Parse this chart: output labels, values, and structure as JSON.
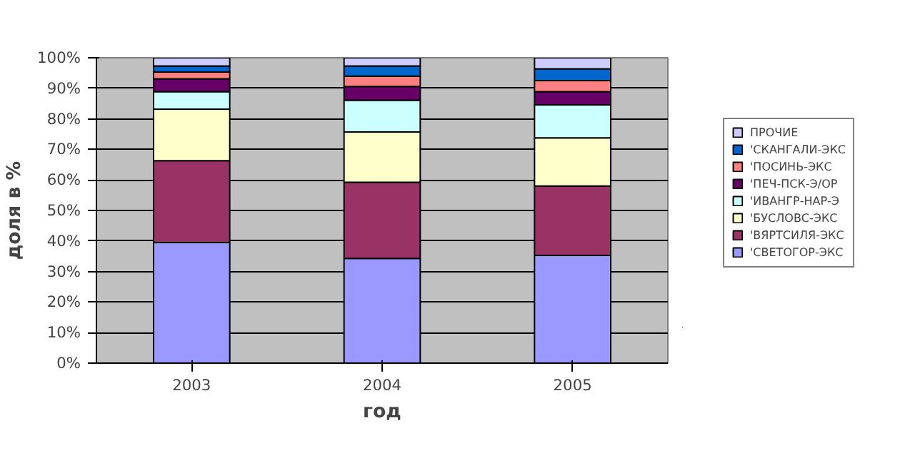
{
  "chart_data": {
    "type": "bar",
    "stacked": true,
    "xlabel": "год",
    "ylabel": "доля в %",
    "categories": [
      "2003",
      "2004",
      "2005"
    ],
    "series": [
      {
        "name": "'СВЕТОГОР-ЭКС",
        "color": "#9999ff",
        "values": [
          39.5,
          34.3,
          35.3
        ]
      },
      {
        "name": "'ВЯРТСИЛЯ-ЭКС",
        "color": "#993366",
        "values": [
          26.8,
          24.9,
          22.7
        ]
      },
      {
        "name": "'БУСЛОВС-ЭКС",
        "color": "#ffffcc",
        "values": [
          16.9,
          16.5,
          15.8
        ]
      },
      {
        "name": "'ИВАНГР-НАР-Э",
        "color": "#ccffff",
        "values": [
          5.7,
          10.4,
          10.8
        ]
      },
      {
        "name": "'ПЕЧ-ПСК-Э/ОР",
        "color": "#660066",
        "values": [
          4.2,
          4.5,
          4.3
        ]
      },
      {
        "name": "'ПОСИНЬ-ЭКС",
        "color": "#ff8080",
        "values": [
          2.2,
          3.4,
          3.6
        ]
      },
      {
        "name": "'СКАНГАЛИ-ЭКС",
        "color": "#0066cc",
        "values": [
          2.0,
          3.3,
          3.9
        ]
      },
      {
        "name": "ПРОЧИЕ",
        "color": "#ccccff",
        "values": [
          2.7,
          2.7,
          3.6
        ]
      }
    ],
    "ylim": [
      0,
      100
    ],
    "yticks": [
      {
        "value": 0,
        "label": "0%"
      },
      {
        "value": 10,
        "label": "10%"
      },
      {
        "value": 20,
        "label": "20%"
      },
      {
        "value": 30,
        "label": "30%"
      },
      {
        "value": 40,
        "label": "40%"
      },
      {
        "value": 50,
        "label": "50%"
      },
      {
        "value": 60,
        "label": "60%"
      },
      {
        "value": 70,
        "label": "70%"
      },
      {
        "value": 80,
        "label": "80%"
      },
      {
        "value": 90,
        "label": "90%"
      },
      {
        "value": 100,
        "label": "100%"
      }
    ],
    "grid": "y",
    "legend": "right"
  }
}
